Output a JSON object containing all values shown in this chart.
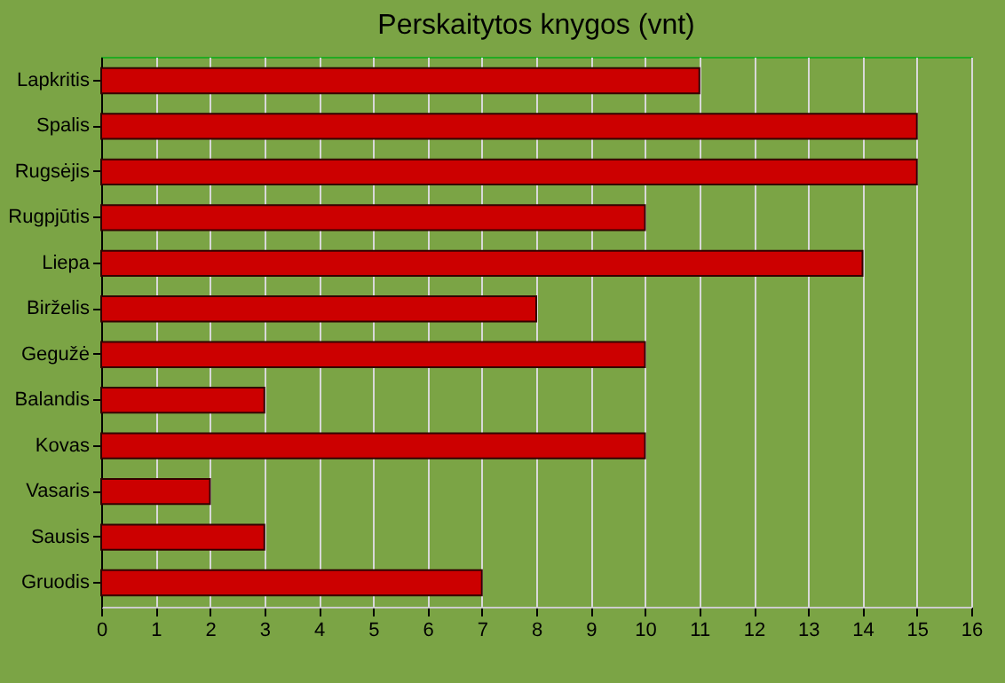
{
  "chart_data": {
    "type": "bar",
    "orientation": "horizontal",
    "title": "Perskaitytos knygos (vnt)",
    "categories": [
      "Lapkritis",
      "Spalis",
      "Rugsėjis",
      "Rugpjūtis",
      "Liepa",
      "Birželis",
      "Gegužė",
      "Balandis",
      "Kovas",
      "Vasaris",
      "Sausis",
      "Gruodis"
    ],
    "values": [
      11,
      15,
      15,
      10,
      14,
      8,
      10,
      3,
      10,
      2,
      3,
      7
    ],
    "color": "#cc0000",
    "xlim": [
      0,
      16
    ],
    "xticks": [
      0,
      1,
      2,
      3,
      4,
      5,
      6,
      7,
      8,
      9,
      10,
      11,
      12,
      13,
      14,
      15,
      16
    ],
    "grid": "x"
  }
}
